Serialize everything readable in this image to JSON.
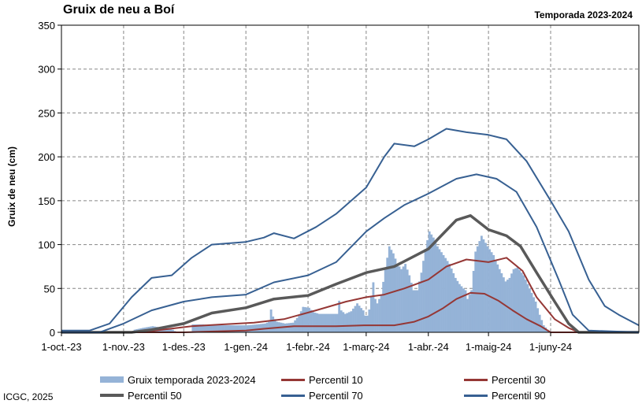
{
  "header": {
    "title": "Gruix de neu a Boí",
    "season": "Temporada 2023-2024"
  },
  "credit": "ICGC, 2025",
  "chart_data": {
    "type": "line",
    "title": "Gruix de neu a Boí",
    "subtitle": "Temporada 2023-2024",
    "xlabel": "",
    "ylabel": "Gruix de neu (cm)",
    "ylim": [
      0,
      350
    ],
    "yticks": [
      0,
      50,
      100,
      150,
      200,
      250,
      300,
      350
    ],
    "x_start": "2023-10-01",
    "x_end": "2024-07-15",
    "xticks": [
      {
        "date": "2023-10-01",
        "label": "1-oct.-23"
      },
      {
        "date": "2023-11-01",
        "label": "1-nov.-23"
      },
      {
        "date": "2023-12-01",
        "label": "1-des.-23"
      },
      {
        "date": "2024-01-01",
        "label": "1-gen.-24"
      },
      {
        "date": "2024-02-01",
        "label": "1-febr.-24"
      },
      {
        "date": "2024-03-01",
        "label": "1-març-24"
      },
      {
        "date": "2024-04-01",
        "label": "1-abr.-24"
      },
      {
        "date": "2024-05-01",
        "label": "1-maig-24"
      },
      {
        "date": "2024-06-01",
        "label": "1-juny-24"
      }
    ],
    "grid": true,
    "legend_position": "bottom",
    "bars": {
      "name": "Gruix temporada 2023-2024",
      "color": "#95b3d7",
      "points": [
        [
          "2023-10-01",
          0
        ],
        [
          "2023-11-05",
          0
        ],
        [
          "2023-11-06",
          3
        ],
        [
          "2023-11-10",
          5
        ],
        [
          "2023-11-15",
          7
        ],
        [
          "2023-11-20",
          5
        ],
        [
          "2023-11-25",
          3
        ],
        [
          "2023-11-27",
          0
        ],
        [
          "2023-12-04",
          0
        ],
        [
          "2023-12-05",
          9
        ],
        [
          "2023-12-10",
          9
        ],
        [
          "2023-12-15",
          8
        ],
        [
          "2023-12-20",
          8
        ],
        [
          "2023-12-26",
          8
        ],
        [
          "2024-01-01",
          8
        ],
        [
          "2024-01-06",
          9
        ],
        [
          "2024-01-10",
          10
        ],
        [
          "2024-01-12",
          12
        ],
        [
          "2024-01-13",
          26
        ],
        [
          "2024-01-14",
          18
        ],
        [
          "2024-01-16",
          12
        ],
        [
          "2024-01-20",
          10
        ],
        [
          "2024-01-24",
          11
        ],
        [
          "2024-01-27",
          19
        ],
        [
          "2024-01-29",
          29
        ],
        [
          "2024-02-01",
          28
        ],
        [
          "2024-02-03",
          23
        ],
        [
          "2024-02-06",
          21
        ],
        [
          "2024-02-10",
          21
        ],
        [
          "2024-02-15",
          21
        ],
        [
          "2024-02-16",
          36
        ],
        [
          "2024-02-17",
          25
        ],
        [
          "2024-02-19",
          21
        ],
        [
          "2024-02-22",
          24
        ],
        [
          "2024-02-25",
          33
        ],
        [
          "2024-02-28",
          25
        ],
        [
          "2024-02-29",
          19
        ],
        [
          "2024-03-01",
          19
        ],
        [
          "2024-03-02",
          26
        ],
        [
          "2024-03-04",
          57
        ],
        [
          "2024-03-05",
          38
        ],
        [
          "2024-03-06",
          33
        ],
        [
          "2024-03-08",
          43
        ],
        [
          "2024-03-10",
          72
        ],
        [
          "2024-03-12",
          98
        ],
        [
          "2024-03-14",
          90
        ],
        [
          "2024-03-16",
          78
        ],
        [
          "2024-03-18",
          72
        ],
        [
          "2024-03-20",
          78
        ],
        [
          "2024-03-22",
          65
        ],
        [
          "2024-03-24",
          48
        ],
        [
          "2024-03-26",
          48
        ],
        [
          "2024-03-28",
          68
        ],
        [
          "2024-03-30",
          95
        ],
        [
          "2024-04-01",
          115
        ],
        [
          "2024-04-03",
          108
        ],
        [
          "2024-04-05",
          98
        ],
        [
          "2024-04-08",
          88
        ],
        [
          "2024-04-11",
          78
        ],
        [
          "2024-04-14",
          62
        ],
        [
          "2024-04-16",
          55
        ],
        [
          "2024-04-18",
          50
        ],
        [
          "2024-04-19",
          48
        ],
        [
          "2024-04-20",
          38
        ],
        [
          "2024-04-22",
          48
        ],
        [
          "2024-04-24",
          92
        ],
        [
          "2024-04-27",
          110
        ],
        [
          "2024-04-30",
          98
        ],
        [
          "2024-05-03",
          88
        ],
        [
          "2024-05-06",
          72
        ],
        [
          "2024-05-09",
          58
        ],
        [
          "2024-05-11",
          62
        ],
        [
          "2024-05-13",
          72
        ],
        [
          "2024-05-15",
          74
        ],
        [
          "2024-05-18",
          65
        ],
        [
          "2024-05-21",
          50
        ],
        [
          "2024-05-24",
          35
        ],
        [
          "2024-05-26",
          20
        ],
        [
          "2024-05-28",
          8
        ],
        [
          "2024-05-30",
          3
        ],
        [
          "2024-06-01",
          0
        ]
      ]
    },
    "series": [
      {
        "name": "Percentil 10",
        "color": "#953735",
        "width": 2,
        "points": [
          [
            "2023-10-01",
            0
          ],
          [
            "2023-12-01",
            0
          ],
          [
            "2024-01-01",
            2
          ],
          [
            "2024-01-10",
            4
          ],
          [
            "2024-01-25",
            7
          ],
          [
            "2024-02-15",
            7
          ],
          [
            "2024-02-29",
            8
          ],
          [
            "2024-03-15",
            8
          ],
          [
            "2024-03-20",
            10
          ],
          [
            "2024-03-25",
            12
          ],
          [
            "2024-04-01",
            18
          ],
          [
            "2024-04-08",
            27
          ],
          [
            "2024-04-15",
            38
          ],
          [
            "2024-04-22",
            45
          ],
          [
            "2024-04-29",
            44
          ],
          [
            "2024-05-06",
            36
          ],
          [
            "2024-05-13",
            25
          ],
          [
            "2024-05-20",
            15
          ],
          [
            "2024-05-27",
            7
          ],
          [
            "2024-06-01",
            0
          ],
          [
            "2024-07-15",
            0
          ]
        ]
      },
      {
        "name": "Percentil 30",
        "color": "#953735",
        "width": 2,
        "points": [
          [
            "2023-10-01",
            0
          ],
          [
            "2023-11-10",
            0
          ],
          [
            "2023-11-20",
            3
          ],
          [
            "2023-12-05",
            7
          ],
          [
            "2023-12-20",
            9
          ],
          [
            "2024-01-05",
            11
          ],
          [
            "2024-01-20",
            15
          ],
          [
            "2024-02-05",
            25
          ],
          [
            "2024-02-20",
            35
          ],
          [
            "2024-03-01",
            40
          ],
          [
            "2024-03-10",
            43
          ],
          [
            "2024-03-20",
            50
          ],
          [
            "2024-04-01",
            60
          ],
          [
            "2024-04-10",
            75
          ],
          [
            "2024-04-20",
            83
          ],
          [
            "2024-05-01",
            80
          ],
          [
            "2024-05-10",
            85
          ],
          [
            "2024-05-18",
            70
          ],
          [
            "2024-05-25",
            40
          ],
          [
            "2024-06-03",
            15
          ],
          [
            "2024-06-10",
            5
          ],
          [
            "2024-06-15",
            0
          ],
          [
            "2024-07-15",
            0
          ]
        ]
      },
      {
        "name": "Percentil 50",
        "color": "#595959",
        "width": 3.5,
        "points": [
          [
            "2023-10-01",
            0
          ],
          [
            "2023-11-05",
            0
          ],
          [
            "2023-11-15",
            3
          ],
          [
            "2023-12-01",
            10
          ],
          [
            "2023-12-15",
            22
          ],
          [
            "2024-01-01",
            28
          ],
          [
            "2024-01-15",
            38
          ],
          [
            "2024-02-01",
            42
          ],
          [
            "2024-02-15",
            55
          ],
          [
            "2024-03-01",
            68
          ],
          [
            "2024-03-15",
            75
          ],
          [
            "2024-04-01",
            95
          ],
          [
            "2024-04-15",
            128
          ],
          [
            "2024-04-22",
            133
          ],
          [
            "2024-05-01",
            117
          ],
          [
            "2024-05-10",
            110
          ],
          [
            "2024-05-17",
            98
          ],
          [
            "2024-05-25",
            68
          ],
          [
            "2024-06-03",
            35
          ],
          [
            "2024-06-10",
            10
          ],
          [
            "2024-06-15",
            0
          ],
          [
            "2024-07-15",
            0
          ]
        ]
      },
      {
        "name": "Percentil 70",
        "color": "#376092",
        "width": 2,
        "points": [
          [
            "2023-10-01",
            0
          ],
          [
            "2023-10-20",
            0
          ],
          [
            "2023-11-01",
            10
          ],
          [
            "2023-11-15",
            25
          ],
          [
            "2023-12-01",
            35
          ],
          [
            "2023-12-15",
            40
          ],
          [
            "2024-01-01",
            43
          ],
          [
            "2024-01-15",
            57
          ],
          [
            "2024-02-01",
            65
          ],
          [
            "2024-02-15",
            80
          ],
          [
            "2024-03-01",
            115
          ],
          [
            "2024-03-10",
            130
          ],
          [
            "2024-03-20",
            145
          ],
          [
            "2024-04-01",
            158
          ],
          [
            "2024-04-15",
            175
          ],
          [
            "2024-04-25",
            180
          ],
          [
            "2024-05-05",
            175
          ],
          [
            "2024-05-15",
            160
          ],
          [
            "2024-05-25",
            120
          ],
          [
            "2024-06-05",
            60
          ],
          [
            "2024-06-12",
            20
          ],
          [
            "2024-06-20",
            2
          ],
          [
            "2024-07-15",
            0
          ]
        ]
      },
      {
        "name": "Percentil 90",
        "color": "#376092",
        "width": 2,
        "points": [
          [
            "2023-10-01",
            2
          ],
          [
            "2023-10-15",
            2
          ],
          [
            "2023-10-25",
            10
          ],
          [
            "2023-11-05",
            40
          ],
          [
            "2023-11-15",
            62
          ],
          [
            "2023-11-25",
            65
          ],
          [
            "2023-12-05",
            85
          ],
          [
            "2023-12-15",
            100
          ],
          [
            "2024-01-01",
            103
          ],
          [
            "2024-01-10",
            108
          ],
          [
            "2024-01-15",
            113
          ],
          [
            "2024-01-25",
            107
          ],
          [
            "2024-02-05",
            120
          ],
          [
            "2024-02-15",
            135
          ],
          [
            "2024-03-01",
            165
          ],
          [
            "2024-03-10",
            200
          ],
          [
            "2024-03-15",
            215
          ],
          [
            "2024-03-25",
            212
          ],
          [
            "2024-04-01",
            220
          ],
          [
            "2024-04-10",
            232
          ],
          [
            "2024-04-20",
            228
          ],
          [
            "2024-05-01",
            225
          ],
          [
            "2024-05-10",
            220
          ],
          [
            "2024-05-20",
            195
          ],
          [
            "2024-06-01",
            150
          ],
          [
            "2024-06-10",
            115
          ],
          [
            "2024-06-20",
            60
          ],
          [
            "2024-06-28",
            30
          ],
          [
            "2024-07-05",
            20
          ],
          [
            "2024-07-15",
            8
          ]
        ]
      }
    ]
  },
  "legend": [
    {
      "label": "Gruix temporada 2023-2024",
      "kind": "bar",
      "color": "#95b3d7"
    },
    {
      "label": "Percentil 10",
      "kind": "line",
      "color": "#953735"
    },
    {
      "label": "Percentil 30",
      "kind": "line",
      "color": "#953735"
    },
    {
      "label": "Percentil 50",
      "kind": "line",
      "color": "#595959"
    },
    {
      "label": "Percentil 70",
      "kind": "line",
      "color": "#376092"
    },
    {
      "label": "Percentil 90",
      "kind": "line",
      "color": "#376092"
    }
  ]
}
